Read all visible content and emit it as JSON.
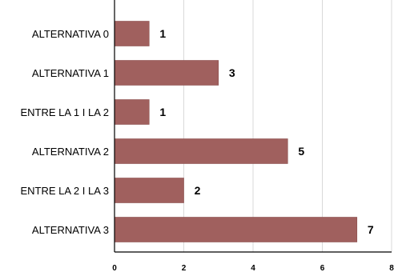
{
  "chart_data": {
    "type": "bar",
    "orientation": "horizontal",
    "categories": [
      "ALTERNATIVA 0",
      "ALTERNATIVA 1",
      "ENTRE LA 1 I LA 2",
      "ALTERNATIVA 2",
      "ENTRE LA 2 I LA 3",
      "ALTERNATIVA 3"
    ],
    "values": [
      1,
      3,
      1,
      5,
      2,
      7
    ],
    "data_labels": [
      "1",
      "3",
      "1",
      "5",
      "2",
      "7"
    ],
    "xticks": [
      "0",
      "2",
      "4",
      "6",
      "8"
    ],
    "xlim": [
      0,
      8
    ],
    "grid": true,
    "legend": "none",
    "bar_color": "#a0605e",
    "bar_stroke": "#8a4f4d",
    "grid_color": "#d9d9d9",
    "axis_color": "#000000",
    "text_color": "#000000"
  }
}
